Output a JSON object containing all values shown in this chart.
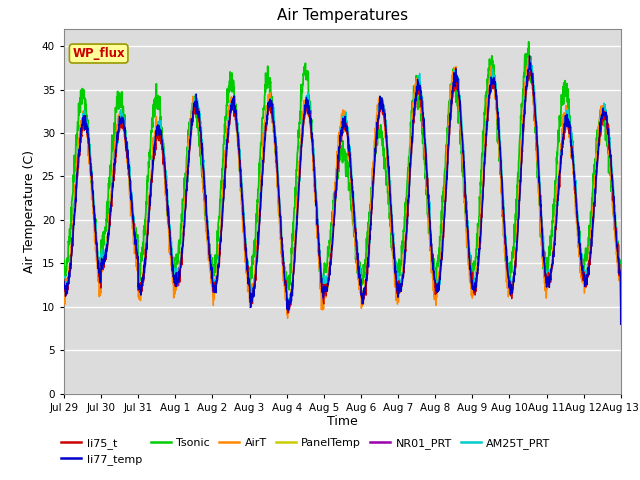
{
  "title": "Air Temperatures",
  "xlabel": "Time",
  "ylabel": "Air Temperature (C)",
  "ylim": [
    0,
    42
  ],
  "yticks": [
    0,
    5,
    10,
    15,
    20,
    25,
    30,
    35,
    40
  ],
  "background_color": "#dcdcdc",
  "series_order": [
    "li75_t",
    "li77_temp",
    "Tsonic",
    "AirT",
    "PanelTemp",
    "NR01_PRT",
    "AM25T_PRT"
  ],
  "series": {
    "li75_t": {
      "color": "#cc0000",
      "lw": 1.0,
      "zorder": 5
    },
    "li77_temp": {
      "color": "#0000cc",
      "lw": 1.0,
      "zorder": 6
    },
    "Tsonic": {
      "color": "#00cc00",
      "lw": 1.3,
      "zorder": 3
    },
    "AirT": {
      "color": "#ff8800",
      "lw": 1.0,
      "zorder": 4
    },
    "PanelTemp": {
      "color": "#cccc00",
      "lw": 1.0,
      "zorder": 4
    },
    "NR01_PRT": {
      "color": "#9900aa",
      "lw": 1.0,
      "zorder": 4
    },
    "AM25T_PRT": {
      "color": "#00cccc",
      "lw": 1.0,
      "zorder": 4
    }
  },
  "legend_label": "WP_flux",
  "legend_fg": "#cc0000",
  "legend_bg": "#ffff99",
  "legend_edge": "#999900",
  "num_days": 15,
  "xtick_labels": [
    "Jul 29",
    "Jul 30",
    "Jul 31",
    "Aug 1",
    "Aug 2",
    "Aug 3",
    "Aug 4",
    "Aug 5",
    "Aug 6",
    "Aug 7",
    "Aug 8",
    "Aug 9",
    "Aug 10",
    "Aug 11",
    "Aug 12",
    "Aug 13"
  ],
  "figsize": [
    6.4,
    4.8
  ],
  "dpi": 100
}
